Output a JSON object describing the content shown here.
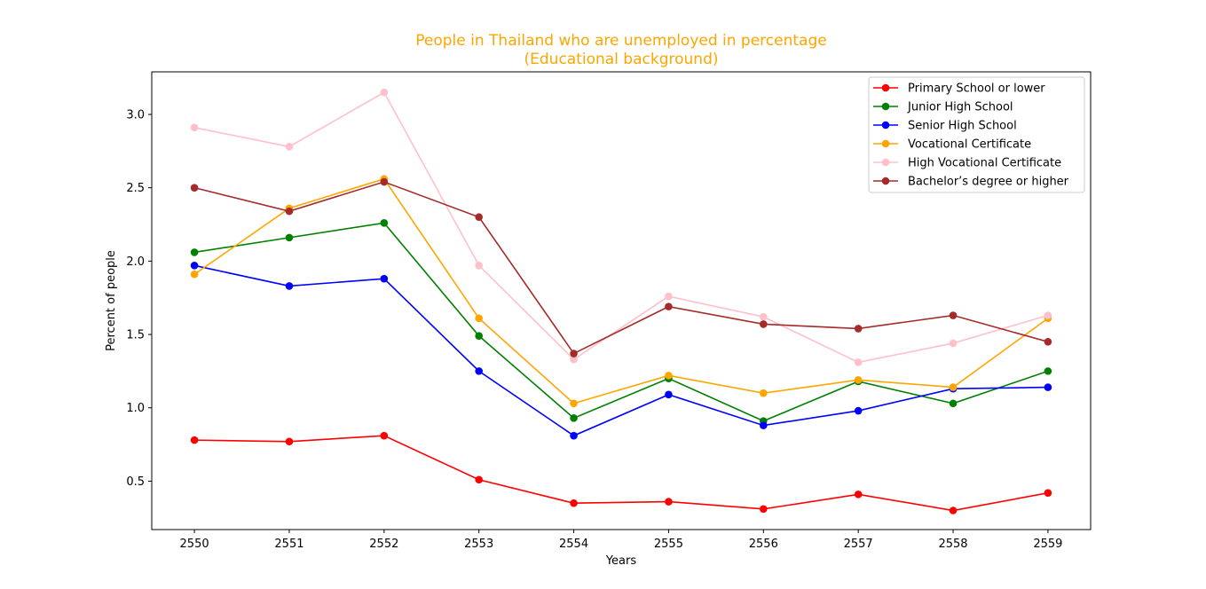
{
  "chart_data": {
    "type": "line",
    "title_line1": "People in Thailand who are unemployed in percentage",
    "title_line2": "(Educational background)",
    "title_color": "#ffa500",
    "xlabel": "Years",
    "ylabel": "Percent of people",
    "x": [
      2550,
      2551,
      2552,
      2553,
      2554,
      2555,
      2556,
      2557,
      2558,
      2559
    ],
    "x_ticks": [
      "2550",
      "2551",
      "2552",
      "2553",
      "2554",
      "2555",
      "2556",
      "2557",
      "2558",
      "2559"
    ],
    "y_ticks": [
      "0.5",
      "1.0",
      "1.5",
      "2.0",
      "2.5",
      "3.0"
    ],
    "y_tick_values": [
      0.5,
      1.0,
      1.5,
      2.0,
      2.5,
      3.0
    ],
    "xlim": [
      2549.55,
      2559.45
    ],
    "ylim": [
      0.17,
      3.29
    ],
    "grid": false,
    "legend_position": "top-right",
    "series": [
      {
        "name": "Primary School or lower",
        "color": "#ff0000",
        "values": [
          0.78,
          0.77,
          0.81,
          0.51,
          0.35,
          0.36,
          0.31,
          0.41,
          0.3,
          0.42
        ]
      },
      {
        "name": "Junior High School",
        "color": "#008000",
        "values": [
          2.06,
          2.16,
          2.26,
          1.49,
          0.93,
          1.2,
          0.91,
          1.18,
          1.03,
          1.25
        ]
      },
      {
        "name": "Senior High School",
        "color": "#0000ff",
        "values": [
          1.97,
          1.83,
          1.88,
          1.25,
          0.81,
          1.09,
          0.88,
          0.98,
          1.13,
          1.14
        ]
      },
      {
        "name": "Vocational Certificate",
        "color": "#ffa500",
        "values": [
          1.91,
          2.36,
          2.56,
          1.61,
          1.03,
          1.22,
          1.1,
          1.19,
          1.14,
          1.61
        ]
      },
      {
        "name": "High Vocational Certificate",
        "color": "#ffc0cb",
        "values": [
          2.91,
          2.78,
          3.15,
          1.97,
          1.33,
          1.76,
          1.62,
          1.31,
          1.44,
          1.63
        ]
      },
      {
        "name": "Bachelor’s degree or higher",
        "color": "#a52a2a",
        "values": [
          2.5,
          2.34,
          2.54,
          2.3,
          1.37,
          1.69,
          1.57,
          1.54,
          1.63,
          1.45
        ]
      }
    ]
  }
}
